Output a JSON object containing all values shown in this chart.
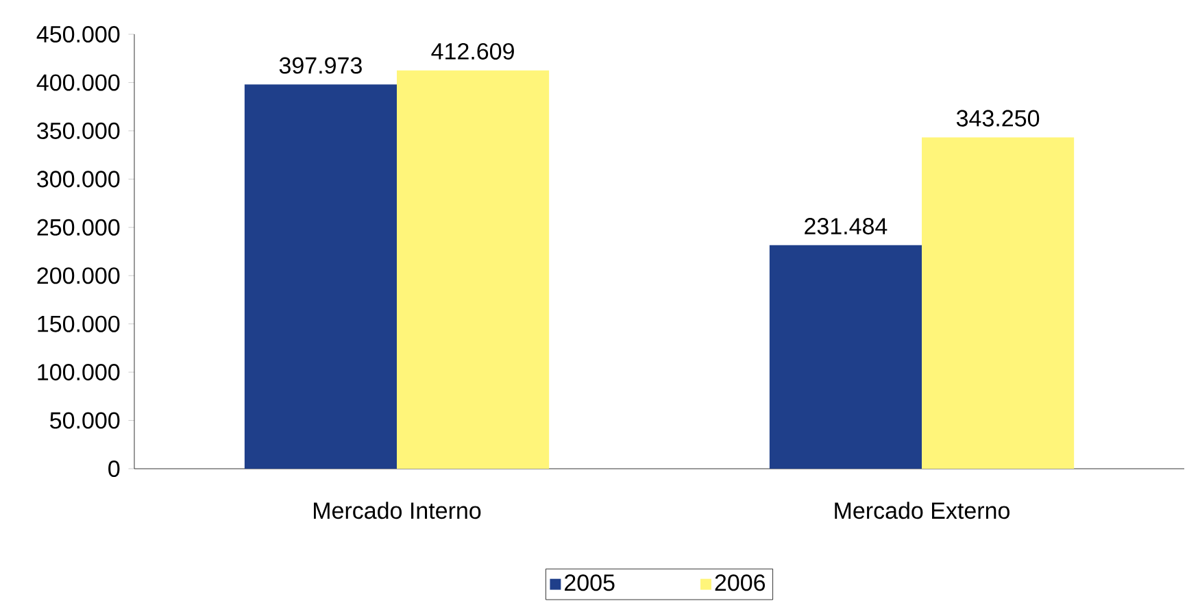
{
  "chart_data": {
    "type": "bar",
    "categories": [
      "Mercado Interno",
      "Mercado Externo"
    ],
    "series": [
      {
        "name": "2005",
        "color": "#1f3f8a",
        "values": [
          397973,
          231484
        ],
        "value_labels": [
          "397.973",
          "231.484"
        ]
      },
      {
        "name": "2006",
        "color": "#fff57a",
        "values": [
          412609,
          343250
        ],
        "value_labels": [
          "412.609",
          "343.250"
        ]
      }
    ],
    "ylim": [
      0,
      450000
    ],
    "yticks": [
      0,
      {
        "value": 50000,
        "label": "50.000"
      },
      {
        "value": 100000,
        "label": "100.000"
      },
      {
        "value": 150000,
        "label": "150.000"
      },
      {
        "value": 200000,
        "label": "200.000"
      },
      {
        "value": 250000,
        "label": "250.000"
      },
      {
        "value": 300000,
        "label": "300.000"
      },
      {
        "value": 350000,
        "label": "350.000"
      },
      {
        "value": 400000,
        "label": "400.000"
      },
      {
        "value": 450000,
        "label": "450.000"
      }
    ],
    "legend": "bottom"
  }
}
